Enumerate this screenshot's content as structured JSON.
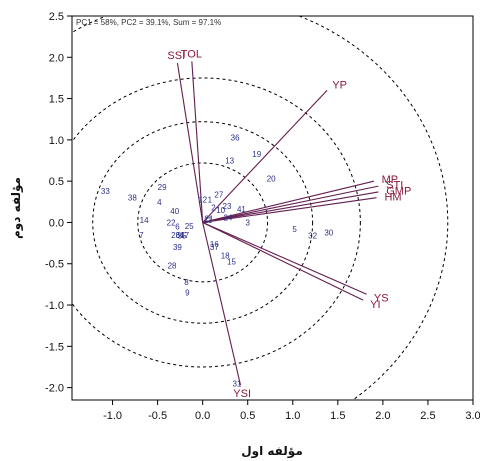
{
  "chart_data": {
    "type": "scatter",
    "annotation": "PC1 = 58%, PC2 = 39.1%, Sum = 97.1%",
    "xlabel": "مؤلفه اول",
    "ylabel": "مؤلفه دوم",
    "xlim": [
      -1.45,
      3.0
    ],
    "ylim": [
      -2.15,
      2.5
    ],
    "x_ticks": [
      "-1.0",
      "-0.5",
      "0.0",
      "0.5",
      "1.0",
      "1.5",
      "2.0",
      "2.5",
      "3.0"
    ],
    "y_ticks": [
      "-2.0",
      "-1.5",
      "-1.0",
      "-0.5",
      "0.0",
      "0.5",
      "1.0",
      "1.5",
      "2.0",
      "2.5"
    ],
    "circle_radii": [
      0.72,
      1.22,
      1.75,
      2.72
    ],
    "vectors": [
      {
        "name": "SSI",
        "x": -0.28,
        "y": 1.93
      },
      {
        "name": "TOL",
        "x": -0.12,
        "y": 1.95
      },
      {
        "name": "YP",
        "x": 1.38,
        "y": 1.6
      },
      {
        "name": "MP",
        "x": 1.9,
        "y": 0.5
      },
      {
        "name": "STI",
        "x": 1.95,
        "y": 0.44
      },
      {
        "name": "GMP",
        "x": 1.95,
        "y": 0.37
      },
      {
        "name": "HM",
        "x": 1.93,
        "y": 0.3
      },
      {
        "name": "YS",
        "x": 1.82,
        "y": -0.87
      },
      {
        "name": "YI",
        "x": 1.78,
        "y": -0.94
      },
      {
        "name": "YSI",
        "x": 0.42,
        "y": -1.97
      }
    ],
    "points": [
      {
        "label": "1",
        "x": 0.08,
        "y": 0.28
      },
      {
        "label": "2",
        "x": 0.12,
        "y": 0.18
      },
      {
        "label": "3",
        "x": 0.5,
        "y": 0.0
      },
      {
        "label": "4",
        "x": -0.48,
        "y": 0.25
      },
      {
        "label": "5",
        "x": 1.02,
        "y": -0.08
      },
      {
        "label": "6",
        "x": -0.28,
        "y": -0.05
      },
      {
        "label": "7",
        "x": -0.68,
        "y": -0.15
      },
      {
        "label": "8",
        "x": -0.18,
        "y": -0.72
      },
      {
        "label": "9",
        "x": -0.17,
        "y": -0.85
      },
      {
        "label": "10",
        "x": 0.2,
        "y": 0.15
      },
      {
        "label": "11",
        "x": 0.06,
        "y": 0.03
      },
      {
        "label": "12",
        "x": 0.0,
        "y": 0.28
      },
      {
        "label": "13",
        "x": 0.3,
        "y": 0.75
      },
      {
        "label": "14",
        "x": -0.65,
        "y": 0.03
      },
      {
        "label": "15",
        "x": 0.32,
        "y": -0.47
      },
      {
        "label": "16",
        "x": 0.13,
        "y": -0.26
      },
      {
        "label": "17",
        "x": -0.2,
        "y": -0.15
      },
      {
        "label": "18",
        "x": 0.25,
        "y": -0.4
      },
      {
        "label": "19",
        "x": 0.6,
        "y": 0.83
      },
      {
        "label": "20",
        "x": 0.76,
        "y": 0.53
      },
      {
        "label": "21",
        "x": 0.07,
        "y": 0.05
      },
      {
        "label": "22",
        "x": -0.35,
        "y": 0.0
      },
      {
        "label": "23",
        "x": 0.27,
        "y": 0.2
      },
      {
        "label": "24",
        "x": 0.28,
        "y": 0.06
      },
      {
        "label": "25",
        "x": -0.15,
        "y": -0.04
      },
      {
        "label": "26",
        "x": -0.3,
        "y": -0.15
      },
      {
        "label": "27",
        "x": 0.18,
        "y": 0.34
      },
      {
        "label": "28",
        "x": -0.34,
        "y": -0.52
      },
      {
        "label": "29",
        "x": -0.45,
        "y": 0.43
      },
      {
        "label": "30",
        "x": 1.4,
        "y": -0.12
      },
      {
        "label": "31",
        "x": 0.38,
        "y": -1.95
      },
      {
        "label": "32",
        "x": 1.22,
        "y": -0.16
      },
      {
        "label": "33",
        "x": -1.08,
        "y": 0.38
      },
      {
        "label": "34",
        "x": -0.25,
        "y": -0.15
      },
      {
        "label": "35",
        "x": -0.23,
        "y": -0.16
      },
      {
        "label": "36",
        "x": 0.36,
        "y": 1.03
      },
      {
        "label": "37",
        "x": 0.13,
        "y": -0.3
      },
      {
        "label": "38",
        "x": -0.78,
        "y": 0.3
      },
      {
        "label": "39",
        "x": -0.28,
        "y": -0.3
      },
      {
        "label": "40",
        "x": -0.31,
        "y": 0.14
      },
      {
        "label": "41",
        "x": 0.43,
        "y": 0.16
      }
    ]
  }
}
